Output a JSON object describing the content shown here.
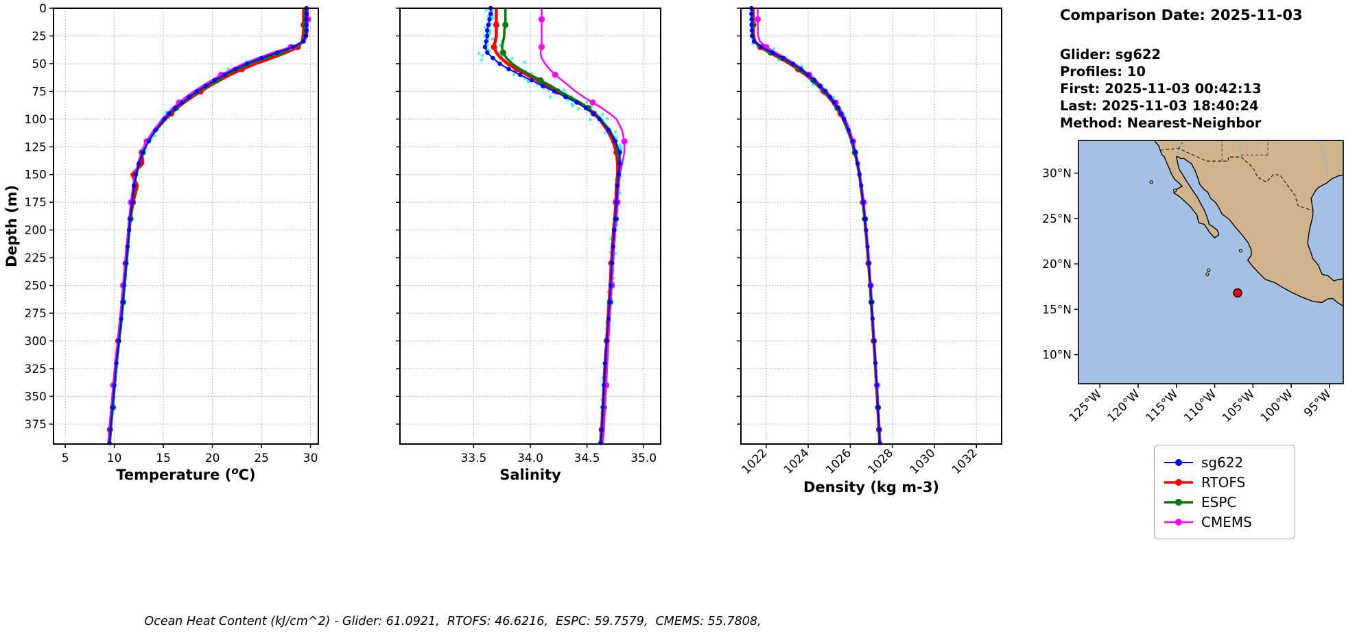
{
  "panel": {
    "comparison_date": "Comparison Date: 2025-11-03",
    "glider": "Glider: sg622",
    "profiles": "Profiles: 10",
    "first": "First: 2025-11-03 00:42:13",
    "last": "Last: 2025-11-03 18:40:24",
    "method": "Method: Nearest-Neighbor"
  },
  "footer_caption": "Ocean Heat Content (kJ/cm^2) - Glider: 61.0921,  RTOFS: 46.6216,  ESPC: 59.7579,  CMEMS: 55.7808,",
  "map": {
    "extent": {
      "lon_min": -127.8,
      "lon_max": -93.2,
      "lat_min": 6.8,
      "lat_max": 33.6
    },
    "lat_ticks": [
      {
        "v": 30,
        "label": "30°N"
      },
      {
        "v": 25,
        "label": "25°N"
      },
      {
        "v": 20,
        "label": "20°N"
      },
      {
        "v": 15,
        "label": "15°N"
      },
      {
        "v": 10,
        "label": "10°N"
      }
    ],
    "lon_ticks": [
      {
        "v": -125,
        "label": "125°W"
      },
      {
        "v": -120,
        "label": "120°W"
      },
      {
        "v": -115,
        "label": "115°W"
      },
      {
        "v": -110,
        "label": "110°W"
      },
      {
        "v": -105,
        "label": "105°W"
      },
      {
        "v": -100,
        "label": "100°W"
      },
      {
        "v": -95,
        "label": "95°W"
      }
    ],
    "ocean_color": "#a4c0e4",
    "land_color": "#d2b48c",
    "river_color": "#8fb3e0",
    "glider_marker": {
      "lon": -107.0,
      "lat": 16.8,
      "color": "#ff0000"
    }
  },
  "chart_data": {
    "type": "line",
    "depths": [
      0,
      5,
      10,
      15,
      20,
      25,
      30,
      35,
      40,
      45,
      50,
      55,
      60,
      65,
      70,
      75,
      80,
      85,
      90,
      95,
      100,
      110,
      120,
      130,
      140,
      150,
      160,
      175,
      190,
      200,
      215,
      230,
      250,
      265,
      280,
      300,
      320,
      340,
      360,
      380,
      392
    ],
    "depth_axis": {
      "label": "Depth (m)",
      "lim": [
        0,
        393
      ],
      "ticks": [
        {
          "v": 0,
          "label": "0"
        },
        {
          "v": 25,
          "label": "25"
        },
        {
          "v": 50,
          "label": "50"
        },
        {
          "v": 75,
          "label": "75"
        },
        {
          "v": 100,
          "label": "100"
        },
        {
          "v": 125,
          "label": "125"
        },
        {
          "v": 150,
          "label": "150"
        },
        {
          "v": 175,
          "label": "175"
        },
        {
          "v": 200,
          "label": "200"
        },
        {
          "v": 225,
          "label": "225"
        },
        {
          "v": 250,
          "label": "250"
        },
        {
          "v": 275,
          "label": "275"
        },
        {
          "v": 300,
          "label": "300"
        },
        {
          "v": 325,
          "label": "325"
        },
        {
          "v": 350,
          "label": "350"
        },
        {
          "v": 375,
          "label": "375"
        }
      ]
    },
    "series_style": [
      {
        "name": "sg622",
        "color": "#0000ff",
        "lw": 2,
        "marker_r": 3.2,
        "marker_every": 1,
        "marker_offset": 0
      },
      {
        "name": "RTOFS",
        "color": "#ff0000",
        "lw": 4.5,
        "marker_r": 4.5,
        "marker_every": 4,
        "marker_offset": 1
      },
      {
        "name": "ESPC",
        "color": "#007d00",
        "lw": 3.5,
        "marker_r": 4.5,
        "marker_every": 5,
        "marker_offset": 2
      },
      {
        "name": "CMEMS",
        "color": "#ff00ff",
        "lw": 2.5,
        "marker_r": 4.5,
        "marker_every": 5,
        "marker_offset": 3
      }
    ],
    "draw_order": [
      "RTOFS",
      "ESPC",
      "CMEMS",
      "sg622"
    ],
    "charts": [
      {
        "id": "temperature",
        "xlabel_prefix": "Temperature (",
        "xlabel_sup": "o",
        "xlabel_suffix": "C)",
        "xlim": [
          3.8,
          30.8
        ],
        "xticks": [
          {
            "v": 5,
            "label": "5"
          },
          {
            "v": 10,
            "label": "10"
          },
          {
            "v": 15,
            "label": "15"
          },
          {
            "v": 20,
            "label": "20"
          },
          {
            "v": 25,
            "label": "25"
          },
          {
            "v": 30,
            "label": "30"
          }
        ],
        "scatter": {
          "mean_series": "sg622",
          "color": "#00ffff",
          "step": 2.2,
          "per_level": 2,
          "spread": [
            [
              0,
              0.12
            ],
            [
              27,
              0.12
            ],
            [
              32,
              0.6
            ],
            [
              40,
              1.1
            ],
            [
              55,
              0.95
            ],
            [
              75,
              0.8
            ],
            [
              100,
              0.5
            ],
            [
              130,
              0.3
            ],
            [
              155,
              0.15
            ],
            [
              392,
              0.08
            ]
          ]
        },
        "series": {
          "sg622": [
            29.6,
            29.6,
            29.6,
            29.6,
            29.6,
            29.55,
            29.3,
            28.2,
            26.6,
            25.0,
            23.5,
            22.3,
            21.2,
            20.2,
            19.3,
            18.4,
            17.6,
            16.9,
            16.2,
            15.6,
            15.1,
            14.2,
            13.5,
            12.9,
            12.5,
            12.2,
            12.0,
            11.8,
            11.6,
            11.5,
            11.35,
            11.2,
            11.0,
            10.85,
            10.7,
            10.45,
            10.2,
            10.0,
            9.8,
            9.6,
            9.5
          ],
          "RTOFS": [
            29.3,
            29.3,
            29.3,
            29.3,
            29.3,
            29.25,
            29.15,
            28.7,
            27.5,
            26.0,
            24.4,
            23.0,
            21.8,
            20.7,
            19.7,
            18.8,
            17.9,
            17.1,
            16.4,
            15.8,
            15.2,
            14.2,
            13.35,
            12.8,
            12.9,
            11.8,
            12.35,
            11.9,
            11.65,
            11.5,
            11.3,
            11.15,
            10.95,
            10.8,
            10.65,
            10.4,
            10.15,
            9.95,
            9.75,
            9.55,
            9.45
          ],
          "ESPC": [
            29.45,
            29.45,
            29.45,
            29.45,
            29.45,
            29.4,
            29.2,
            28.45,
            26.95,
            25.35,
            23.85,
            22.55,
            21.45,
            20.45,
            19.5,
            18.6,
            17.75,
            17.0,
            16.3,
            15.7,
            15.15,
            14.2,
            13.45,
            12.9,
            12.55,
            12.25,
            12.05,
            11.85,
            11.65,
            11.55,
            11.4,
            11.25,
            11.05,
            10.9,
            10.75,
            10.5,
            10.25,
            10.05,
            9.85,
            9.65,
            9.55
          ],
          "CMEMS": [
            29.75,
            29.75,
            29.75,
            29.7,
            29.7,
            29.65,
            29.35,
            28.0,
            26.2,
            24.6,
            23.2,
            22.0,
            20.9,
            19.9,
            19.0,
            18.1,
            17.3,
            16.6,
            15.95,
            15.4,
            14.9,
            14.0,
            13.3,
            12.75,
            12.4,
            12.1,
            11.9,
            11.7,
            11.5,
            11.4,
            11.25,
            11.1,
            10.9,
            10.75,
            10.6,
            10.35,
            10.1,
            9.9,
            9.7,
            9.5,
            9.4
          ]
        }
      },
      {
        "id": "salinity",
        "xlabel_prefix": "Salinity",
        "xlim": [
          32.85,
          35.15
        ],
        "xticks": [
          {
            "v": 33.5,
            "label": "33.5"
          },
          {
            "v": 34.0,
            "label": "34.0"
          },
          {
            "v": 34.5,
            "label": "34.5"
          },
          {
            "v": 35.0,
            "label": "35.0"
          }
        ],
        "scatter": {
          "mean_series": "sg622",
          "color": "#00ffff",
          "step": 2.2,
          "per_level": 2,
          "spread": [
            [
              0,
              0.04
            ],
            [
              27,
              0.07
            ],
            [
              32,
              0.26
            ],
            [
              45,
              0.3
            ],
            [
              60,
              0.18
            ],
            [
              75,
              0.15
            ],
            [
              95,
              0.13
            ],
            [
              115,
              0.07
            ],
            [
              135,
              0.035
            ],
            [
              392,
              0.015
            ]
          ]
        },
        "series": {
          "sg622": [
            33.65,
            33.65,
            33.64,
            33.63,
            33.62,
            33.62,
            33.61,
            33.6,
            33.62,
            33.67,
            33.73,
            33.81,
            33.91,
            34.01,
            34.11,
            34.21,
            34.31,
            34.41,
            34.49,
            34.56,
            34.61,
            34.69,
            34.75,
            34.79,
            34.79,
            34.78,
            34.77,
            34.76,
            34.75,
            34.74,
            34.73,
            34.72,
            34.71,
            34.7,
            34.69,
            34.675,
            34.66,
            34.65,
            34.64,
            34.63,
            34.62
          ],
          "RTOFS": [
            33.7,
            33.7,
            33.7,
            33.7,
            33.7,
            33.7,
            33.69,
            33.68,
            33.7,
            33.74,
            33.8,
            33.88,
            33.97,
            34.06,
            34.15,
            34.24,
            34.33,
            34.42,
            34.5,
            34.56,
            34.61,
            34.68,
            34.73,
            34.76,
            34.77,
            34.77,
            34.76,
            34.755,
            34.745,
            34.735,
            34.725,
            34.715,
            34.705,
            34.695,
            34.685,
            34.675,
            34.66,
            34.65,
            34.64,
            34.63,
            34.62
          ],
          "ESPC": [
            33.78,
            33.78,
            33.78,
            33.78,
            33.77,
            33.77,
            33.76,
            33.75,
            33.76,
            33.79,
            33.84,
            33.91,
            34.0,
            34.09,
            34.18,
            34.26,
            34.35,
            34.44,
            34.51,
            34.57,
            34.62,
            34.7,
            34.75,
            34.78,
            34.79,
            34.78,
            34.77,
            34.765,
            34.755,
            34.745,
            34.735,
            34.725,
            34.715,
            34.705,
            34.695,
            34.685,
            34.67,
            34.66,
            34.65,
            34.64,
            34.63
          ],
          "CMEMS": [
            34.1,
            34.1,
            34.1,
            34.1,
            34.1,
            34.1,
            34.1,
            34.1,
            34.09,
            34.1,
            34.13,
            34.17,
            34.22,
            34.28,
            34.34,
            34.4,
            34.47,
            34.55,
            34.63,
            34.7,
            34.76,
            34.81,
            34.83,
            34.83,
            34.81,
            34.79,
            34.78,
            34.77,
            34.76,
            34.75,
            34.74,
            34.73,
            34.72,
            34.71,
            34.7,
            34.69,
            34.68,
            34.67,
            34.66,
            34.65,
            34.64
          ]
        }
      },
      {
        "id": "density",
        "xlabel_prefix": "Density (kg m-3)",
        "xlim": [
          1020.8,
          1033.2
        ],
        "rotate_xticks": true,
        "xticks": [
          {
            "v": 1022,
            "label": "1022"
          },
          {
            "v": 1024,
            "label": "1024"
          },
          {
            "v": 1026,
            "label": "1026"
          },
          {
            "v": 1028,
            "label": "1028"
          },
          {
            "v": 1030,
            "label": "1030"
          },
          {
            "v": 1032,
            "label": "1032"
          }
        ],
        "scatter": {
          "mean_series": "sg622",
          "color": "#00ffff",
          "step": 2.2,
          "per_level": 2,
          "spread": [
            [
              0,
              0.06
            ],
            [
              27,
              0.06
            ],
            [
              32,
              0.35
            ],
            [
              45,
              0.5
            ],
            [
              60,
              0.38
            ],
            [
              80,
              0.25
            ],
            [
              100,
              0.15
            ],
            [
              130,
              0.08
            ],
            [
              160,
              0.045
            ],
            [
              392,
              0.02
            ]
          ]
        },
        "series": {
          "sg622": [
            1021.3,
            1021.3,
            1021.31,
            1021.31,
            1021.32,
            1021.33,
            1021.42,
            1021.78,
            1022.3,
            1022.82,
            1023.28,
            1023.66,
            1024.0,
            1024.3,
            1024.57,
            1024.82,
            1025.04,
            1025.24,
            1025.42,
            1025.57,
            1025.7,
            1025.92,
            1026.1,
            1026.24,
            1026.35,
            1026.44,
            1026.52,
            1026.62,
            1026.7,
            1026.75,
            1026.82,
            1026.88,
            1026.96,
            1027.01,
            1027.06,
            1027.13,
            1027.2,
            1027.26,
            1027.32,
            1027.38,
            1027.41
          ],
          "RTOFS": [
            1021.38,
            1021.38,
            1021.38,
            1021.39,
            1021.39,
            1021.4,
            1021.47,
            1021.72,
            1022.16,
            1022.66,
            1023.12,
            1023.52,
            1023.88,
            1024.2,
            1024.48,
            1024.74,
            1024.97,
            1025.18,
            1025.37,
            1025.53,
            1025.67,
            1025.9,
            1026.08,
            1026.22,
            1026.34,
            1026.44,
            1026.51,
            1026.61,
            1026.69,
            1026.74,
            1026.81,
            1026.87,
            1026.95,
            1027.0,
            1027.05,
            1027.12,
            1027.19,
            1027.25,
            1027.31,
            1027.37,
            1027.4
          ],
          "ESPC": [
            1021.34,
            1021.34,
            1021.34,
            1021.35,
            1021.35,
            1021.36,
            1021.44,
            1021.75,
            1022.22,
            1022.73,
            1023.19,
            1023.58,
            1023.93,
            1024.24,
            1024.52,
            1024.77,
            1025.0,
            1025.2,
            1025.39,
            1025.55,
            1025.68,
            1025.91,
            1026.09,
            1026.23,
            1026.34,
            1026.44,
            1026.51,
            1026.61,
            1026.7,
            1026.75,
            1026.82,
            1026.88,
            1026.96,
            1027.01,
            1027.06,
            1027.13,
            1027.2,
            1027.26,
            1027.32,
            1027.38,
            1027.41
          ],
          "CMEMS": [
            1021.6,
            1021.6,
            1021.6,
            1021.6,
            1021.61,
            1021.62,
            1021.7,
            1022.0,
            1022.45,
            1022.92,
            1023.35,
            1023.72,
            1024.05,
            1024.35,
            1024.62,
            1024.87,
            1025.09,
            1025.3,
            1025.49,
            1025.64,
            1025.77,
            1025.98,
            1026.14,
            1026.27,
            1026.38,
            1026.47,
            1026.54,
            1026.64,
            1026.72,
            1026.77,
            1026.84,
            1026.9,
            1026.97,
            1027.02,
            1027.07,
            1027.14,
            1027.21,
            1027.27,
            1027.33,
            1027.39,
            1027.42
          ]
        }
      }
    ]
  }
}
